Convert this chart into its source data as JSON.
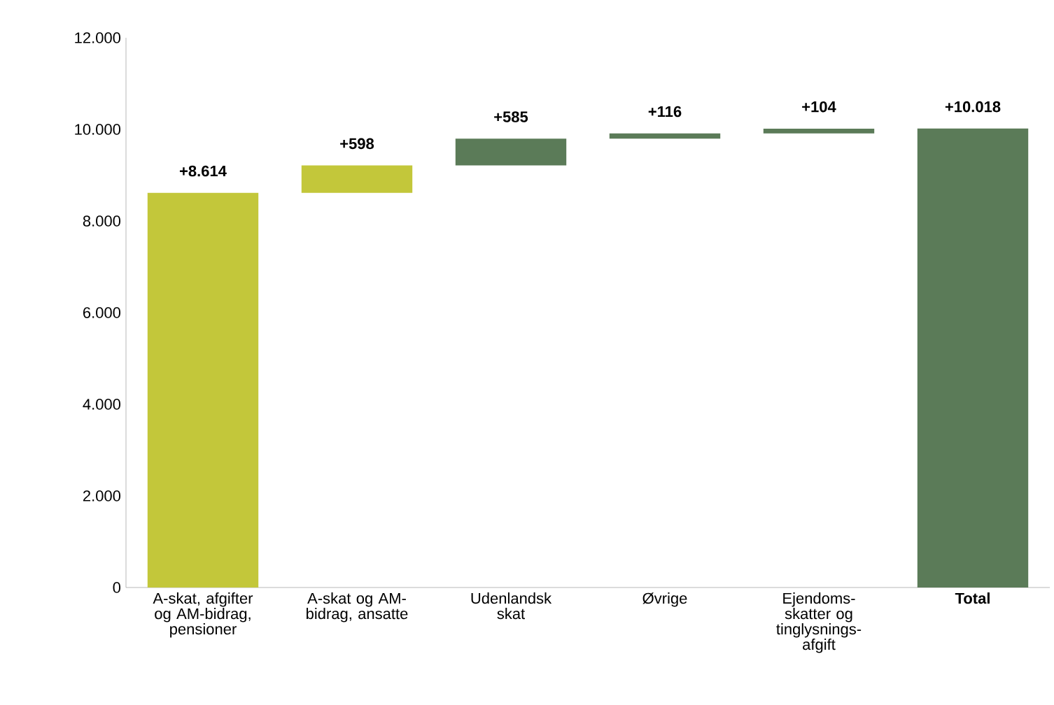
{
  "chart_data": {
    "type": "bar",
    "categories": [
      "A-skat, afgifter og AM-bidrag, pensioner",
      "A-skat og AM-bidrag, ansatte",
      "Udenlandsk skat",
      "Øvrige",
      "Ejendoms-skatter og tinglysnings-afgift",
      "**Total**"
    ],
    "values": [
      8614,
      598,
      585,
      116,
      104,
      10018
    ],
    "base": [
      0,
      8614,
      9212,
      9797,
      9913,
      0
    ],
    "colors": [
      "#c3c73a",
      "#c3c73a",
      "#5b7b58",
      "#5b7b58",
      "#5b7b58",
      "#5b7b58"
    ],
    "value_labels": [
      "+8.614",
      "+598",
      "+585",
      "+116",
      "+104",
      "+10.018"
    ],
    "ylim": [
      0,
      12000
    ],
    "yticks": [
      {
        "value": 0,
        "label": "0"
      },
      {
        "value": 2000,
        "label": "2.000"
      },
      {
        "value": 4000,
        "label": "4.000"
      },
      {
        "value": 6000,
        "label": "6.000"
      },
      {
        "value": 8000,
        "label": "8.000"
      },
      {
        "value": 10000,
        "label": "10.000"
      },
      {
        "value": 12000,
        "label": "12.000"
      }
    ]
  }
}
